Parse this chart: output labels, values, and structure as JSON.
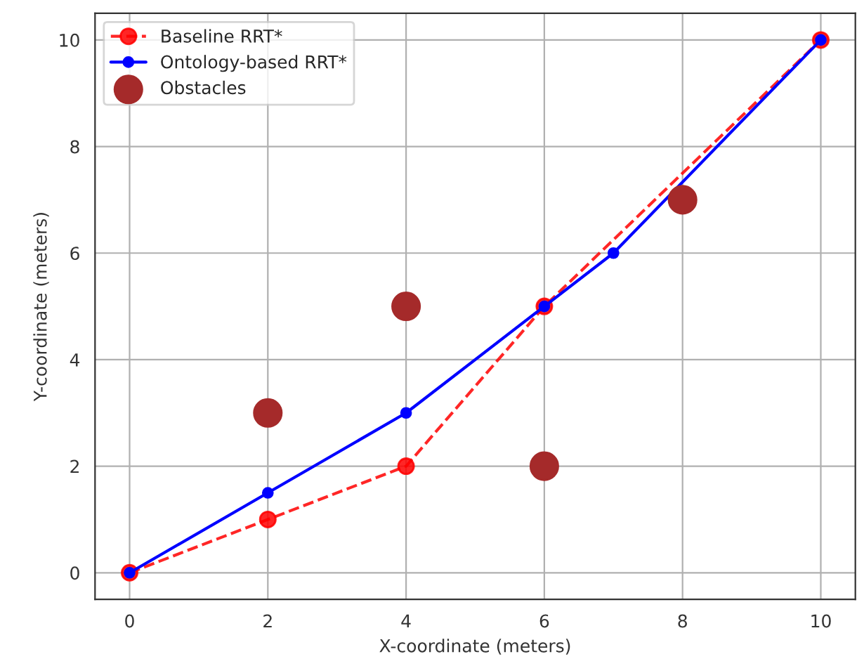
{
  "chart_data": {
    "type": "line",
    "xlabel": "X-coordinate (meters)",
    "ylabel": "Y-coordinate (meters)",
    "xlim": [
      -0.5,
      10.5
    ],
    "ylim": [
      -0.5,
      10.5
    ],
    "xticks": [
      0,
      2,
      4,
      6,
      8,
      10
    ],
    "yticks": [
      0,
      2,
      4,
      6,
      8,
      10
    ],
    "grid": true,
    "legend": "top left",
    "series": [
      {
        "name": "Baseline RRT*",
        "color": "#ff0000",
        "type": "line",
        "line_style": "dashed",
        "marker": "circle",
        "x": [
          0,
          2,
          4,
          6,
          10
        ],
        "values": [
          0,
          1,
          2,
          5,
          10
        ]
      },
      {
        "name": "Ontology-based RRT*",
        "color": "#0000ff",
        "type": "line",
        "line_style": "solid",
        "marker": "circle",
        "x": [
          0,
          2,
          4,
          6,
          7,
          10
        ],
        "values": [
          0,
          1.5,
          3,
          5,
          6,
          10
        ]
      },
      {
        "name": "Obstacles",
        "color": "#a52a2a",
        "type": "scatter",
        "marker": "circle",
        "x": [
          2,
          4,
          6,
          8
        ],
        "values": [
          3,
          5,
          2,
          7
        ]
      }
    ]
  }
}
